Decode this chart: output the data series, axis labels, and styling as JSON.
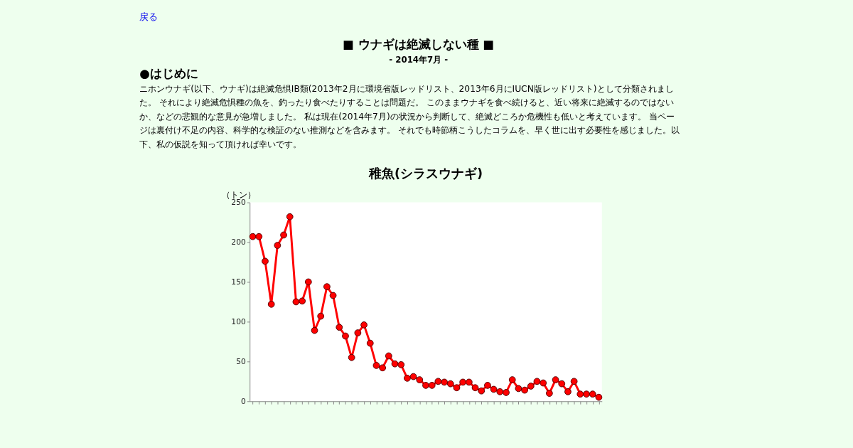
{
  "chart_data": {
    "type": "line",
    "title": "稚魚(シラスウナギ)",
    "ylabel": "（トン）",
    "annotations": [
      "戻る",
      "■ ウナギは絶滅しない種 ■",
      "- 2014年7月 -",
      "●はじめに",
      "ニホンウナギ(以下、ウナギ)は絶滅危惧ⅠB類(2013年2月に環境省版レッドリスト、2013年6月にIUCN版レッドリスト)として分類されました。 それにより絶滅危惧種の魚を、釣ったり食べたりすることは問題だ。 このままウナギを食べ続けると、近い将来に絶滅するのではないか、などの悲観的な意見が急増しました。 私は現在(2014年7月)の状況から判断して、絶滅どころか危機性も低いと考えています。 当ページは裏付け不足の内容、科学的な検証のない推測などを含みます。 それでも時節柄こうしたコラムを、早く世に出す必要性を感じました。以下、私の仮説を知って頂ければ幸いです。"
    ],
    "categories": [
      null,
      null,
      null,
      null,
      null,
      null,
      null,
      null,
      null,
      null,
      null,
      null,
      null,
      null,
      null,
      null,
      null,
      null,
      null,
      null,
      null,
      null,
      null,
      null,
      null,
      null,
      null,
      null,
      null,
      null,
      null,
      null,
      null,
      null,
      null,
      null,
      null,
      null,
      null,
      null,
      null,
      null,
      null,
      null,
      null,
      null,
      null,
      null,
      null,
      null,
      null,
      null,
      null,
      null,
      null,
      null,
      null
    ],
    "series": [
      {
        "color": "#ff0000",
        "values": [
          207,
          207,
          176,
          122,
          196,
          209,
          232,
          125,
          126,
          150,
          89,
          107,
          144,
          133,
          93,
          82,
          55,
          86,
          96,
          73,
          45,
          42,
          57,
          47,
          46,
          29,
          31,
          27,
          20,
          20,
          25,
          24,
          22,
          17,
          24,
          24,
          17,
          13,
          20,
          15,
          12,
          11,
          27,
          16,
          14,
          19,
          25,
          23,
          10,
          27,
          22,
          12,
          25,
          9,
          9,
          9,
          5
        ]
      }
    ],
    "ylim": [
      0,
      250
    ],
    "yticks": [
      0,
      50,
      100,
      150,
      200,
      250
    ],
    "grid": false,
    "marker": "circle",
    "line_style": "solid",
    "tick_labels": "y"
  }
}
